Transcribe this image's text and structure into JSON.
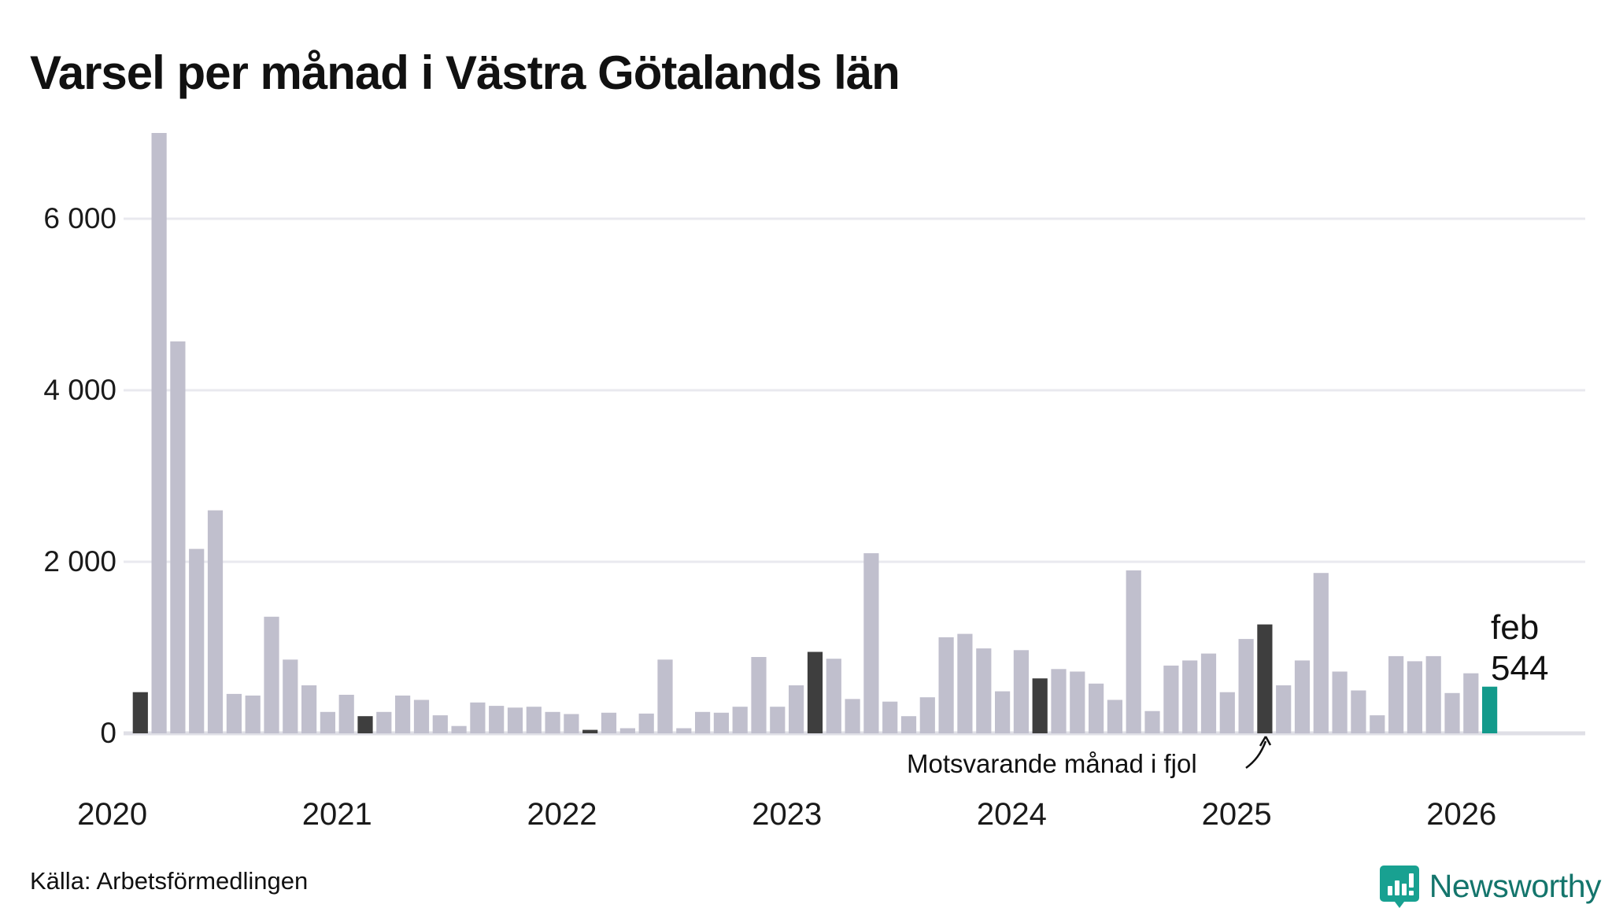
{
  "title": "Varsel per månad i Västra Götalands län",
  "source": "Källa: Arbetsförmedlingen",
  "brand": {
    "name": "Newsworthy"
  },
  "annotation": {
    "text": "Motsvarande månad i fjol"
  },
  "highlight_label": {
    "month": "feb",
    "value": "544"
  },
  "colors": {
    "bar_default": "#c0bfcd",
    "bar_compare": "#3e3e3e",
    "bar_highlight": "#139a8b",
    "gridline": "#e9e9ef",
    "baseline": "#dfdfe6",
    "text": "#1a1a1a",
    "brand_teal": "#18a191"
  },
  "chart_data": {
    "type": "bar",
    "title": "Varsel per månad i Västra Götalands län",
    "ylabel": "",
    "xlabel": "",
    "ylim": [
      0,
      7200
    ],
    "grid": "horizontal",
    "y_ticks": [
      {
        "value": 0,
        "label": "0"
      },
      {
        "value": 2000,
        "label": "2 000"
      },
      {
        "value": 4000,
        "label": "4 000"
      },
      {
        "value": 6000,
        "label": "6 000"
      }
    ],
    "x_ticks": [
      "2020",
      "2021",
      "2022",
      "2023",
      "2024",
      "2025",
      "2026"
    ],
    "months": [
      "2020-02",
      "2020-03",
      "2020-04",
      "2020-05",
      "2020-06",
      "2020-07",
      "2020-08",
      "2020-09",
      "2020-10",
      "2020-11",
      "2020-12",
      "2021-01",
      "2021-02",
      "2021-03",
      "2021-04",
      "2021-05",
      "2021-06",
      "2021-07",
      "2021-08",
      "2021-09",
      "2021-10",
      "2021-11",
      "2021-12",
      "2022-01",
      "2022-02",
      "2022-03",
      "2022-04",
      "2022-05",
      "2022-06",
      "2022-07",
      "2022-08",
      "2022-09",
      "2022-10",
      "2022-11",
      "2022-12",
      "2023-01",
      "2023-02",
      "2023-03",
      "2023-04",
      "2023-05",
      "2023-06",
      "2023-07",
      "2023-08",
      "2023-09",
      "2023-10",
      "2023-11",
      "2023-12",
      "2024-01",
      "2024-02",
      "2024-03",
      "2024-04",
      "2024-05",
      "2024-06",
      "2024-07",
      "2024-08",
      "2024-09",
      "2024-10",
      "2024-11",
      "2024-12",
      "2025-01",
      "2025-02",
      "2025-03",
      "2025-04",
      "2025-05",
      "2025-06",
      "2025-07",
      "2025-08",
      "2025-09",
      "2025-10",
      "2025-11",
      "2025-12",
      "2026-01",
      "2026-02"
    ],
    "values": [
      480,
      7000,
      4570,
      2150,
      2600,
      460,
      440,
      1360,
      860,
      560,
      250,
      450,
      200,
      250,
      440,
      390,
      210,
      85,
      360,
      320,
      300,
      310,
      250,
      225,
      40,
      240,
      60,
      230,
      860,
      60,
      250,
      240,
      310,
      890,
      310,
      560,
      950,
      870,
      400,
      2100,
      370,
      200,
      420,
      1120,
      1160,
      990,
      490,
      970,
      640,
      750,
      720,
      580,
      390,
      1900,
      260,
      790,
      850,
      930,
      480,
      1100,
      1270,
      560,
      850,
      1870,
      720,
      500,
      210,
      900,
      840,
      900,
      470,
      700,
      544
    ],
    "compare_month_indices": [
      0,
      12,
      24,
      36,
      48,
      60
    ],
    "highlight_index": 72,
    "legend": [
      {
        "label": "Motsvarande månad i fjol",
        "color": "#3e3e3e"
      },
      {
        "label": "feb 544",
        "color": "#139a8b"
      }
    ]
  }
}
